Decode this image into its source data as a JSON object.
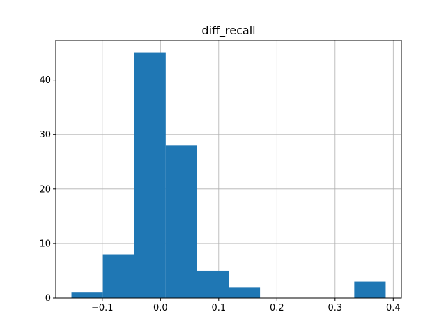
{
  "chart_data": {
    "type": "bar",
    "title": "diff_recall",
    "xlabel": "",
    "ylabel": "",
    "bins": [
      {
        "x0": -0.153,
        "x1": -0.099,
        "count": 1
      },
      {
        "x0": -0.099,
        "x1": -0.045,
        "count": 8
      },
      {
        "x0": -0.045,
        "x1": 0.009,
        "count": 45
      },
      {
        "x0": 0.009,
        "x1": 0.063,
        "count": 28
      },
      {
        "x0": 0.063,
        "x1": 0.117,
        "count": 5
      },
      {
        "x0": 0.117,
        "x1": 0.171,
        "count": 2
      },
      {
        "x0": 0.171,
        "x1": 0.225,
        "count": 0
      },
      {
        "x0": 0.225,
        "x1": 0.279,
        "count": 0
      },
      {
        "x0": 0.279,
        "x1": 0.333,
        "count": 0
      },
      {
        "x0": 0.333,
        "x1": 0.387,
        "count": 3
      }
    ],
    "xlim": [
      -0.18,
      0.414
    ],
    "ylim": [
      0,
      47.25
    ],
    "xticks": [
      -0.1,
      0.0,
      0.1,
      0.2,
      0.3,
      0.4
    ],
    "xtick_labels": [
      "−0.1",
      "0.0",
      "0.1",
      "0.2",
      "0.3",
      "0.4"
    ],
    "yticks": [
      0,
      10,
      20,
      30,
      40
    ],
    "ytick_labels": [
      "0",
      "10",
      "20",
      "30",
      "40"
    ],
    "grid": true,
    "bar_color": "#1f77b4",
    "grid_color": "#b0b0b0"
  }
}
